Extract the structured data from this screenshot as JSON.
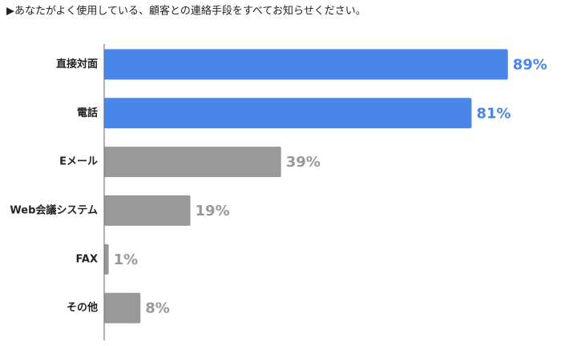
{
  "chart_data": {
    "type": "bar",
    "orientation": "horizontal",
    "title": "▶あなたがよく使用している、顧客との連絡手段をすべてお知らせください。",
    "categories": [
      "直接対面",
      "電話",
      "Eメール",
      "Web会議システム",
      "FAX",
      "その他"
    ],
    "values": [
      89,
      81,
      39,
      19,
      1,
      8
    ],
    "value_labels": [
      "89%",
      "81%",
      "39%",
      "19%",
      "1%",
      "8%"
    ],
    "colors": [
      "#4a86e8",
      "#4a86e8",
      "#999999",
      "#999999",
      "#999999",
      "#999999"
    ],
    "xlim": [
      0,
      100
    ]
  }
}
